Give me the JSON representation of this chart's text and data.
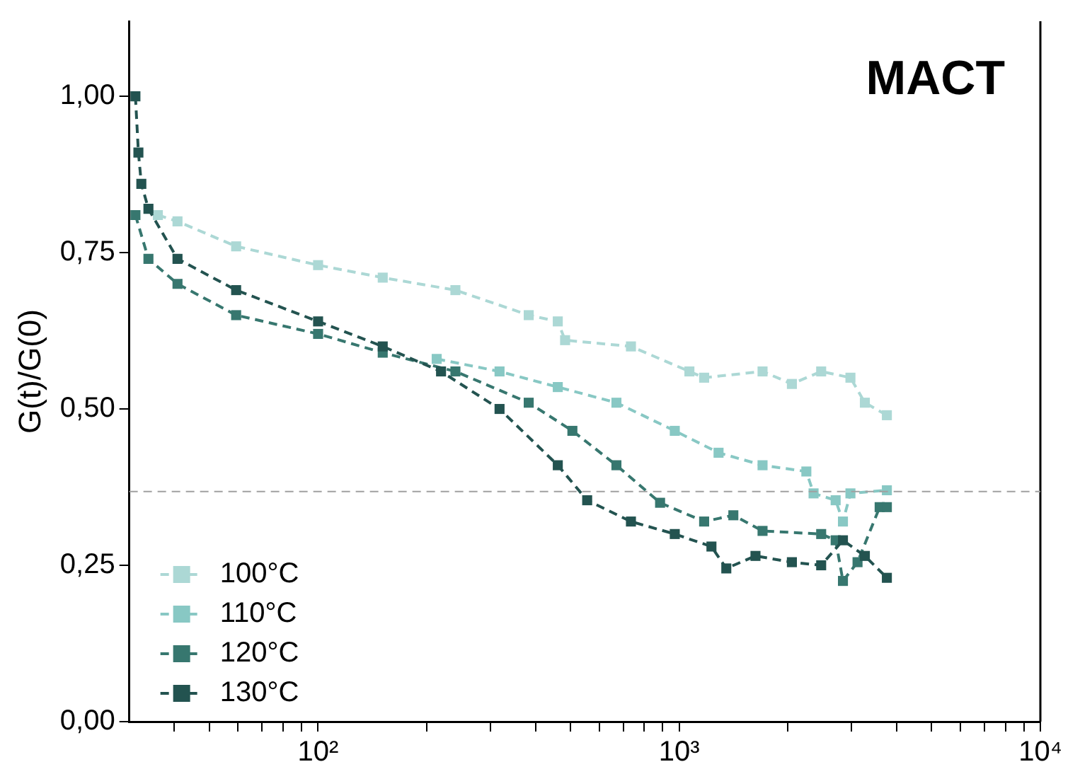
{
  "chart_data": {
    "type": "line",
    "ylabel": "G(t)/G(0)",
    "annotations": [
      "MACT"
    ],
    "log": "x",
    "grid": false,
    "legend": "bottom left",
    "marker": "square",
    "line_style": "dashed",
    "xlim": [
      30,
      10000
    ],
    "ylim": [
      0,
      1.12
    ],
    "xticks": [
      {
        "value": 40,
        "label": null
      },
      {
        "value": 50,
        "label": null
      },
      {
        "value": 60,
        "label": null
      },
      {
        "value": 70,
        "label": null
      },
      {
        "value": 80,
        "label": null
      },
      {
        "value": 90,
        "label": null
      },
      {
        "value": 100,
        "label": "10²"
      },
      {
        "value": 200,
        "label": null
      },
      {
        "value": 300,
        "label": null
      },
      {
        "value": 400,
        "label": null
      },
      {
        "value": 500,
        "label": null
      },
      {
        "value": 600,
        "label": null
      },
      {
        "value": 700,
        "label": null
      },
      {
        "value": 800,
        "label": null
      },
      {
        "value": 900,
        "label": null
      },
      {
        "value": 1000,
        "label": "10³"
      },
      {
        "value": 2000,
        "label": null
      },
      {
        "value": 3000,
        "label": null
      },
      {
        "value": 4000,
        "label": null
      },
      {
        "value": 5000,
        "label": null
      },
      {
        "value": 6000,
        "label": null
      },
      {
        "value": 7000,
        "label": null
      },
      {
        "value": 8000,
        "label": null
      },
      {
        "value": 9000,
        "label": null
      },
      {
        "value": 10000,
        "label": "10⁴"
      }
    ],
    "yticks": [
      {
        "value": 0,
        "label": "0,00"
      },
      {
        "value": 0.25,
        "label": "0,25"
      },
      {
        "value": 0.5,
        "label": "0,50"
      },
      {
        "value": 0.75,
        "label": "0,75"
      },
      {
        "value": 1,
        "label": "1,00"
      }
    ],
    "ref_lines": [
      {
        "axis": "y",
        "value": 0.368,
        "color": "#a0a0a0",
        "line_style": "dashed"
      }
    ],
    "series": [
      {
        "name": "100°C",
        "color": "#acd8d5",
        "x": [
          36,
          40.8,
          59.3,
          100,
          151,
          240,
          383,
          461,
          483,
          735,
          1067,
          1172,
          1701,
          2051,
          2472,
          2979,
          3266,
          3758
        ],
        "values": [
          0.81,
          0.8,
          0.76,
          0.73,
          0.71,
          0.69,
          0.65,
          0.64,
          0.61,
          0.6,
          0.56,
          0.55,
          0.56,
          0.54,
          0.56,
          0.55,
          0.51,
          0.49
        ]
      },
      {
        "name": "110°C",
        "color": "#88c8c4",
        "x": [
          213,
          318,
          461,
          670,
          972,
          1285,
          1701,
          2249,
          2355,
          2711,
          2840,
          2979,
          3758
        ],
        "values": [
          0.58,
          0.56,
          0.535,
          0.51,
          0.465,
          0.43,
          0.41,
          0.4,
          0.365,
          0.354,
          0.32,
          0.365,
          0.37
        ]
      },
      {
        "name": "120°C",
        "color": "#37776f",
        "x": [
          31.2,
          33.9,
          40.8,
          59.3,
          100,
          151,
          240,
          383,
          506,
          670,
          885,
          1172,
          1412,
          1701,
          2472,
          2711,
          2840,
          3117,
          3589,
          3758
        ],
        "values": [
          0.81,
          0.74,
          0.7,
          0.65,
          0.62,
          0.59,
          0.56,
          0.51,
          0.465,
          0.41,
          0.35,
          0.32,
          0.33,
          0.305,
          0.3,
          0.29,
          0.225,
          0.255,
          0.343,
          0.343
        ]
      },
      {
        "name": "130°C",
        "color": "#235350",
        "x": [
          31.2,
          31.8,
          32.4,
          33.9,
          40.8,
          59.3,
          100,
          151,
          219,
          318,
          461,
          556,
          735,
          972,
          1228,
          1350,
          1626,
          2051,
          2472,
          2840,
          3266,
          3758
        ],
        "values": [
          1.0,
          0.91,
          0.86,
          0.82,
          0.74,
          0.69,
          0.64,
          0.6,
          0.56,
          0.5,
          0.41,
          0.354,
          0.32,
          0.3,
          0.28,
          0.245,
          0.265,
          0.255,
          0.25,
          0.29,
          0.265,
          0.23
        ]
      }
    ]
  }
}
